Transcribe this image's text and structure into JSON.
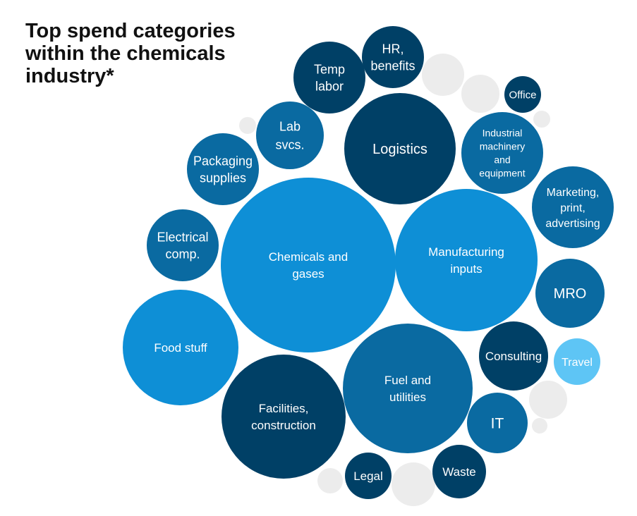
{
  "title": "Top spend categories within the chemicals industry*",
  "colors": {
    "dark": "#004066",
    "mid": "#0a6aa1",
    "bright": "#0e8fd6",
    "light": "#5ec5f5",
    "grey": "#ececec"
  },
  "chart_data": {
    "type": "bubble",
    "categories": [
      {
        "label": "Chemicals and gases",
        "tone": "bright",
        "lines": [
          "Chemicals and",
          "gases"
        ]
      },
      {
        "label": "Manufacturing inputs",
        "tone": "bright",
        "lines": [
          "Manufacturing",
          "inputs"
        ]
      },
      {
        "label": "Fuel and utilities",
        "tone": "mid",
        "lines": [
          "Fuel and",
          "utilities"
        ]
      },
      {
        "label": "Facilities, construction",
        "tone": "dark",
        "lines": [
          "Facilities,",
          "construction"
        ]
      },
      {
        "label": "Food stuff",
        "tone": "bright",
        "lines": [
          "Food stuff"
        ]
      },
      {
        "label": "Logistics",
        "tone": "dark",
        "lines": [
          "Logistics"
        ]
      },
      {
        "label": "Industrial machinery and equipment",
        "tone": "mid",
        "lines": [
          "Industrial",
          "machinery",
          "and",
          "equipment"
        ]
      },
      {
        "label": "Marketing, print, advertising",
        "tone": "mid",
        "lines": [
          "Marketing,",
          "print,",
          "advertising"
        ]
      },
      {
        "label": "MRO",
        "tone": "mid",
        "lines": [
          "MRO"
        ]
      },
      {
        "label": "Consulting",
        "tone": "dark",
        "lines": [
          "Consulting"
        ]
      },
      {
        "label": "Travel",
        "tone": "light",
        "lines": [
          "Travel"
        ]
      },
      {
        "label": "IT",
        "tone": "mid",
        "lines": [
          "IT"
        ]
      },
      {
        "label": "Waste",
        "tone": "dark",
        "lines": [
          "Waste"
        ]
      },
      {
        "label": "Legal",
        "tone": "dark",
        "lines": [
          "Legal"
        ]
      },
      {
        "label": "Electrical comp.",
        "tone": "mid",
        "lines": [
          "Electrical",
          "comp."
        ]
      },
      {
        "label": "Packaging supplies",
        "tone": "mid",
        "lines": [
          "Packaging",
          "supplies"
        ]
      },
      {
        "label": "Lab svcs.",
        "tone": "mid",
        "lines": [
          "Lab",
          "svcs."
        ]
      },
      {
        "label": "Temp labor",
        "tone": "dark",
        "lines": [
          "Temp",
          "labor"
        ]
      },
      {
        "label": "HR, benefits",
        "tone": "dark",
        "lines": [
          "HR,",
          "benefits"
        ]
      },
      {
        "label": "Office",
        "tone": "dark",
        "lines": [
          "Office"
        ]
      }
    ]
  }
}
